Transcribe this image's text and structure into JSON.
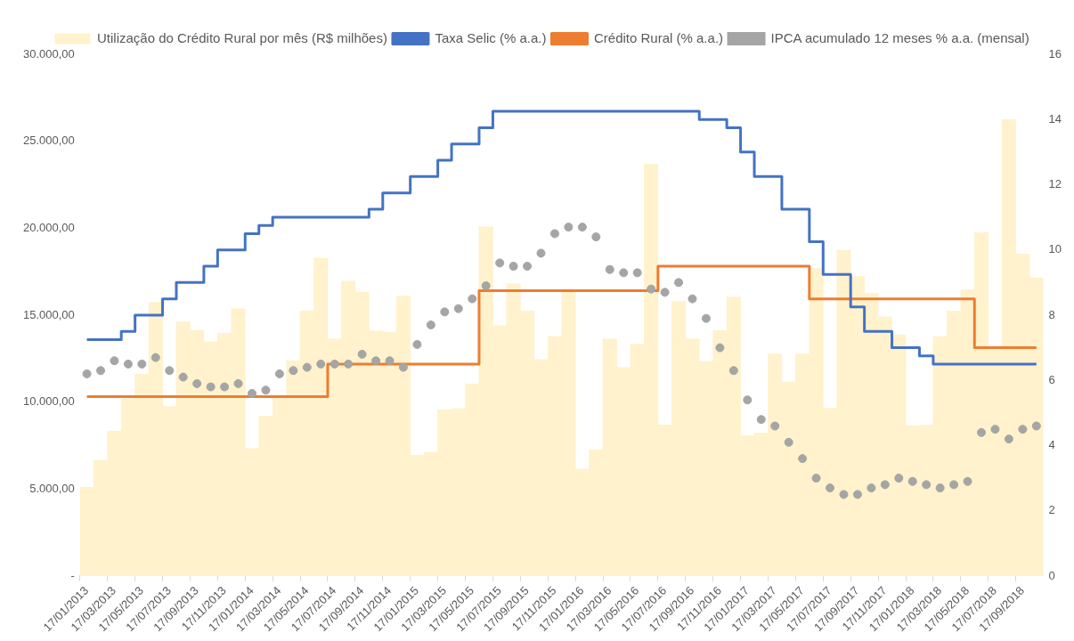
{
  "chart_data": {
    "type": "bar",
    "categories": [
      "17/01/2013",
      null,
      "17/03/2013",
      null,
      "17/05/2013",
      null,
      "17/07/2013",
      null,
      "17/09/2013",
      null,
      "17/11/2013",
      null,
      "17/01/2014",
      null,
      "17/03/2014",
      null,
      "17/05/2014",
      null,
      "17/07/2014",
      null,
      "17/09/2014",
      null,
      "17/11/2014",
      null,
      "17/01/2015",
      null,
      "17/03/2015",
      null,
      "17/05/2015",
      null,
      "17/07/2015",
      null,
      "17/09/2015",
      null,
      "17/11/2015",
      null,
      "17/01/2016",
      null,
      "17/03/2016",
      null,
      "17/05/2016",
      null,
      "17/07/2016",
      null,
      "17/09/2016",
      null,
      "17/11/2016",
      null,
      "17/01/2017",
      null,
      "17/03/2017",
      null,
      "17/05/2017",
      null,
      "17/07/2017",
      null,
      "17/09/2017",
      null,
      "17/11/2017",
      null,
      "17/01/2018",
      null,
      "17/03/2018",
      null,
      "17/05/2018",
      null,
      "17/07/2018",
      null,
      "17/09/2018",
      null
    ],
    "series": [
      {
        "type": "bar",
        "name": "Utilização do Crédito Rural por mês (R$ milhões)",
        "color": "#fff2cc",
        "values": [
          5100,
          6650,
          8340,
          10200,
          11600,
          15740,
          9750,
          14630,
          14120,
          13460,
          13960,
          15370,
          7330,
          9190,
          10300,
          12390,
          15250,
          18270,
          13640,
          16950,
          16320,
          14090,
          14020,
          16100,
          6950,
          7110,
          9570,
          9630,
          11040,
          20070,
          14400,
          16800,
          15250,
          12450,
          13780,
          16420,
          6150,
          7250,
          13620,
          11990,
          13340,
          23670,
          8680,
          15790,
          13620,
          12330,
          14120,
          16040,
          8060,
          8230,
          12770,
          11150,
          12770,
          17680,
          9640,
          18730,
          17220,
          16250,
          14900,
          13870,
          8630,
          8670,
          13770,
          15240,
          16470,
          19740,
          13200,
          26250,
          18510,
          17140
        ]
      },
      {
        "type": "step",
        "axis": "y2",
        "name": "Taxa Selic (% a.a.)",
        "color": "#4472c4",
        "values": [
          7.25,
          7.25,
          7.25,
          7.5,
          8,
          8,
          8.5,
          9,
          9,
          9.5,
          10,
          10,
          10.5,
          10.75,
          11,
          11,
          11,
          11,
          11,
          11,
          11,
          11.25,
          11.75,
          11.75,
          12.25,
          12.25,
          12.75,
          13.25,
          13.25,
          13.75,
          14.25,
          14.25,
          14.25,
          14.25,
          14.25,
          14.25,
          14.25,
          14.25,
          14.25,
          14.25,
          14.25,
          14.25,
          14.25,
          14.25,
          14.25,
          14,
          14,
          13.75,
          13,
          12.25,
          12.25,
          11.25,
          11.25,
          10.25,
          9.25,
          9.25,
          8.25,
          7.5,
          7.5,
          7,
          7,
          6.75,
          6.5,
          6.5,
          6.5,
          6.5,
          6.5,
          6.5,
          6.5,
          6.5
        ]
      },
      {
        "type": "step",
        "axis": "y2",
        "name": "Crédito Rural (% a.a.)",
        "color": "#ed7d31",
        "values": [
          5.5,
          5.5,
          5.5,
          5.5,
          5.5,
          5.5,
          5.5,
          5.5,
          5.5,
          5.5,
          5.5,
          5.5,
          5.5,
          5.5,
          5.5,
          5.5,
          5.5,
          5.5,
          6.5,
          6.5,
          6.5,
          6.5,
          6.5,
          6.5,
          6.5,
          6.5,
          6.5,
          6.5,
          6.5,
          8.75,
          8.75,
          8.75,
          8.75,
          8.75,
          8.75,
          8.75,
          8.75,
          8.75,
          8.75,
          8.75,
          8.75,
          8.75,
          9.5,
          9.5,
          9.5,
          9.5,
          9.5,
          9.5,
          9.5,
          9.5,
          9.5,
          9.5,
          9.5,
          8.5,
          8.5,
          8.5,
          8.5,
          8.5,
          8.5,
          8.5,
          8.5,
          8.5,
          8.5,
          8.5,
          8.5,
          7,
          7,
          7,
          7,
          7
        ]
      },
      {
        "type": "scatter",
        "axis": "y2",
        "name": "IPCA acumulado 12 meses % a.a. (mensal)",
        "color": "#a5a5a5",
        "values": [
          6.2,
          6.3,
          6.6,
          6.5,
          6.5,
          6.7,
          6.3,
          6.1,
          5.9,
          5.8,
          5.8,
          5.9,
          5.6,
          5.7,
          6.2,
          6.3,
          6.4,
          6.5,
          6.5,
          6.5,
          6.8,
          6.6,
          6.6,
          6.4,
          7.1,
          7.7,
          8.1,
          8.2,
          8.5,
          8.9,
          9.6,
          9.5,
          9.5,
          9.9,
          10.5,
          10.7,
          10.7,
          10.4,
          9.4,
          9.3,
          9.3,
          8.8,
          8.7,
          9.0,
          8.5,
          7.9,
          7.0,
          6.3,
          5.4,
          4.8,
          4.6,
          4.1,
          3.6,
          3.0,
          2.7,
          2.5,
          2.5,
          2.7,
          2.8,
          3.0,
          2.9,
          2.8,
          2.7,
          2.8,
          2.9,
          4.4,
          4.5,
          4.2,
          4.5,
          4.6
        ]
      }
    ],
    "ylim": [
      0,
      30000
    ],
    "yticks": [
      {
        "value": 0,
        "label": "-"
      },
      {
        "value": 5000,
        "label": "5.000,00"
      },
      {
        "value": 10000,
        "label": "10.000,00"
      },
      {
        "value": 15000,
        "label": "15.000,00"
      },
      {
        "value": 20000,
        "label": "20.000,00"
      },
      {
        "value": 25000,
        "label": "25.000,00"
      },
      {
        "value": 30000,
        "label": "30.000,00"
      }
    ],
    "y2lim": [
      0,
      16
    ],
    "y2ticks": [
      0,
      2,
      4,
      6,
      8,
      10,
      12,
      14,
      16
    ],
    "grid": false,
    "legend": "top"
  }
}
